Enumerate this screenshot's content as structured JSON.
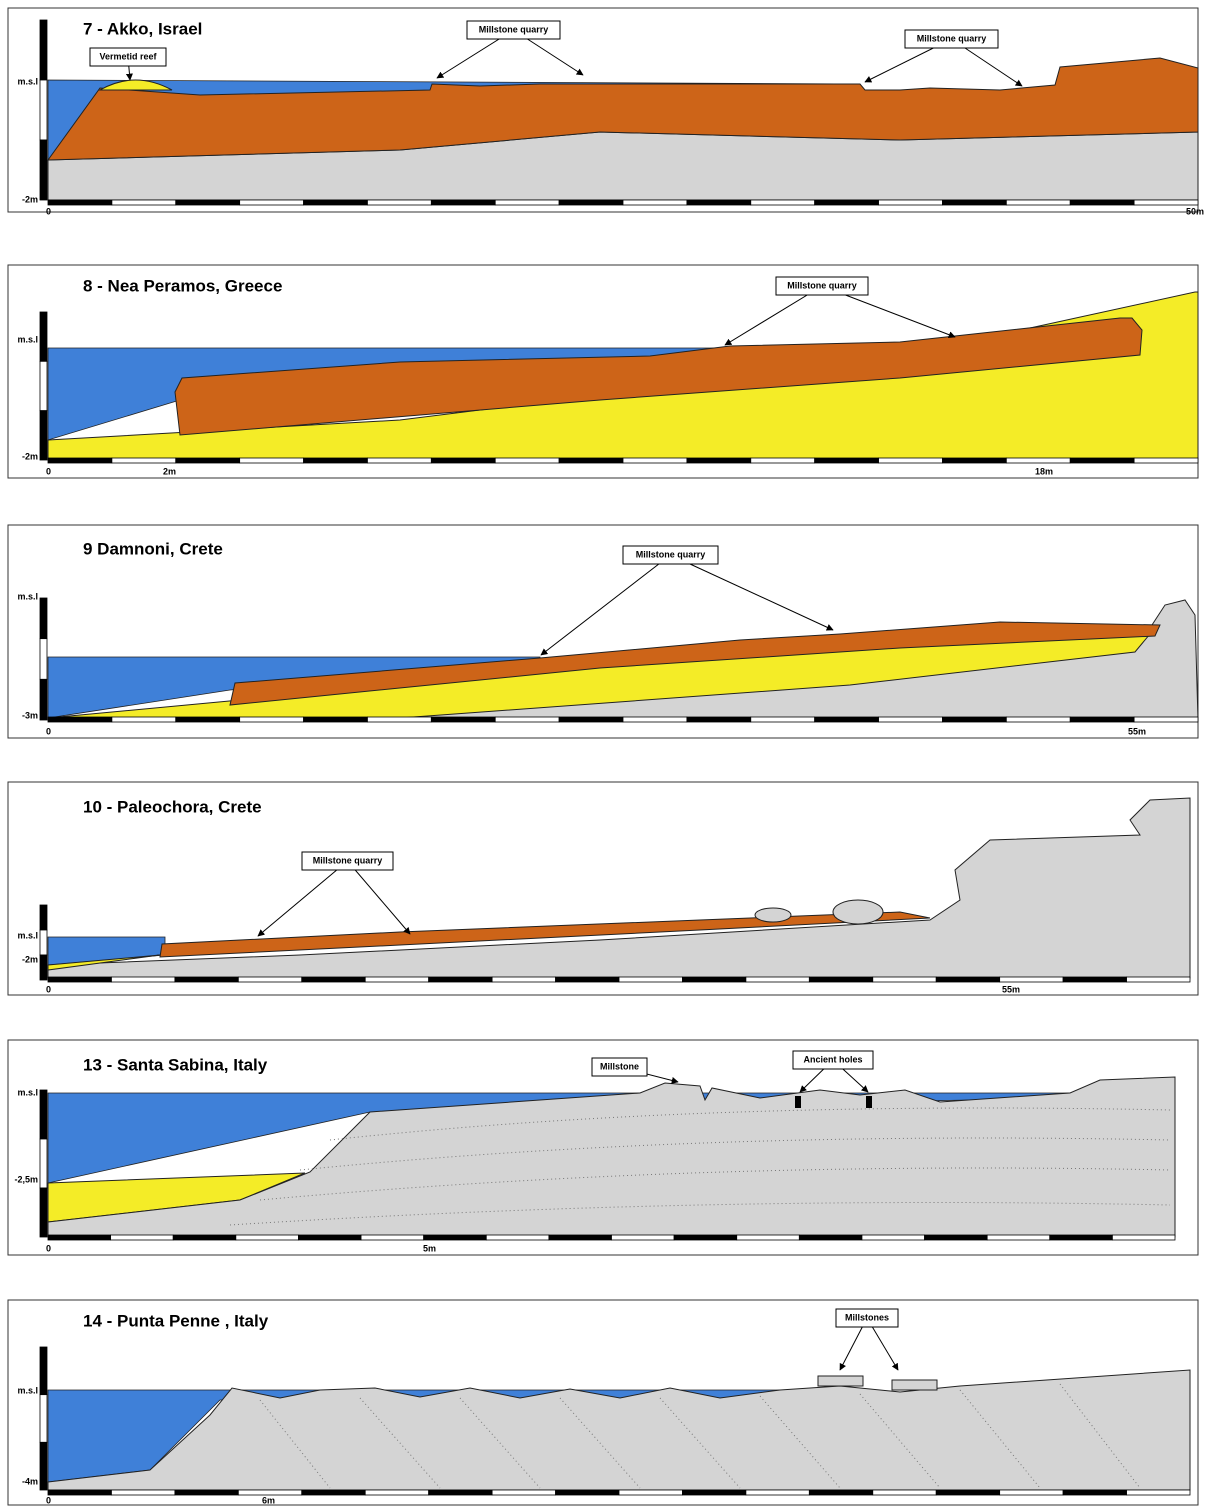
{
  "panels": [
    {
      "title": "7 - Akko, Israel",
      "msl_label": "m.s.l",
      "depth_label": "-2m",
      "scale_labels": [
        "0",
        "50m"
      ],
      "callouts": [
        "Vermetid reef",
        "Millstone quarry",
        "Millstone quarry"
      ]
    },
    {
      "title": "8 - Nea Peramos, Greece",
      "msl_label": "m.s.l",
      "depth_label": "-2m",
      "scale_labels": [
        "0",
        "2m",
        "18m"
      ],
      "callouts": [
        "Millstone quarry"
      ]
    },
    {
      "title": "9 Damnoni, Crete",
      "msl_label": "m.s.l",
      "depth_label": "-3m",
      "scale_labels": [
        "0",
        "55m"
      ],
      "callouts": [
        "Millstone quarry"
      ]
    },
    {
      "title": "10 - Paleochora, Crete",
      "msl_label": "m.s.l",
      "depth_label": "-2m",
      "scale_labels": [
        "0",
        "55m"
      ],
      "callouts": [
        "Millstone quarry"
      ]
    },
    {
      "title": "13 - Santa Sabina, Italy",
      "msl_label": "m.s.l",
      "depth_label": "-2,5m",
      "scale_labels": [
        "0",
        "5m"
      ],
      "callouts": [
        "Millstone",
        "Ancient holes"
      ]
    },
    {
      "title": "14 - Punta Penne , Italy",
      "msl_label": "m.s.l",
      "depth_label": "-4m",
      "scale_labels": [
        "0",
        "6m"
      ],
      "callouts": [
        "Millstones"
      ]
    }
  ]
}
